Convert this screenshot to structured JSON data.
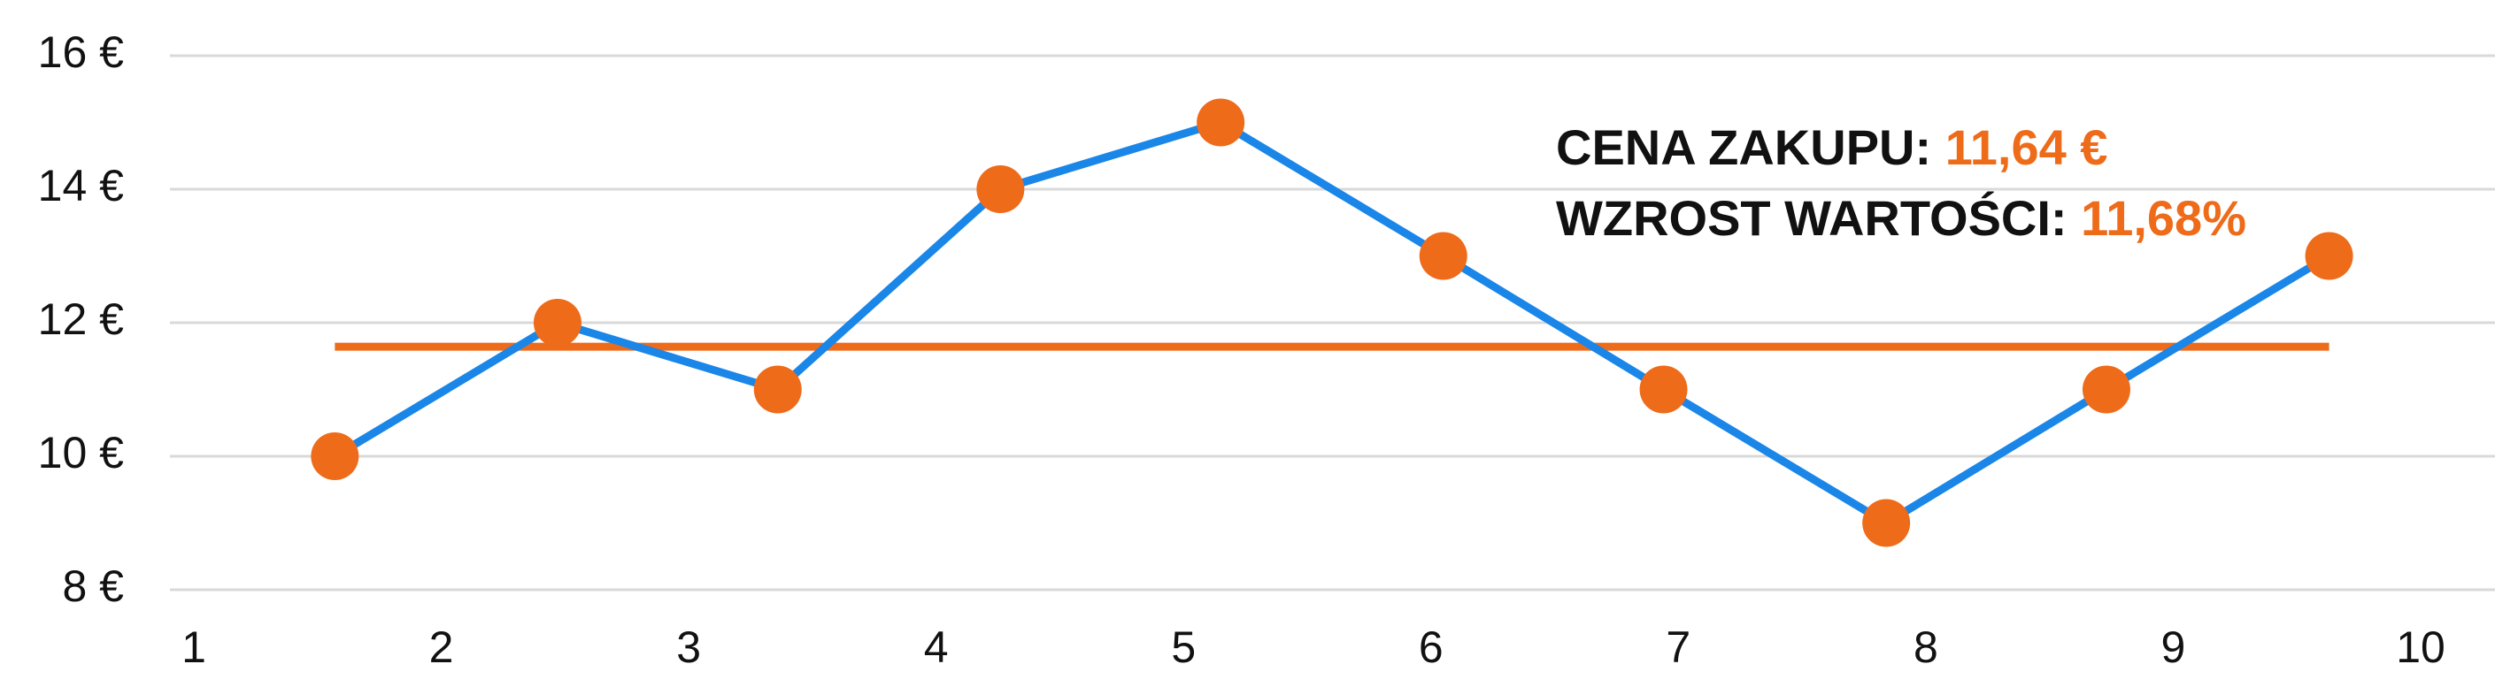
{
  "chart_data": {
    "type": "line",
    "x": [
      1.57,
      2.47,
      3.36,
      4.26,
      5.15,
      6.05,
      6.94,
      7.84,
      8.73,
      9.63
    ],
    "values": [
      10,
      12,
      11,
      14,
      15,
      13,
      11,
      9,
      11,
      13
    ],
    "line_color": "#1a86e8",
    "marker_color": "#ee6b1a",
    "xlim": [
      1,
      10
    ],
    "xticks": [
      1,
      2,
      3,
      4,
      5,
      6,
      7,
      8,
      9,
      10
    ],
    "ylim": [
      8,
      16
    ],
    "yticks": [
      {
        "value": 8,
        "label": "8 €"
      },
      {
        "value": 10,
        "label": "10 €"
      },
      {
        "value": 12,
        "label": "12 €"
      },
      {
        "value": 14,
        "label": "14 €"
      },
      {
        "value": 16,
        "label": "16 €"
      }
    ],
    "grid": true,
    "reference_line": {
      "value": 11.64,
      "color": "#ee6b1a"
    },
    "annotations": [
      {
        "label": "CENA ZAKUPU:",
        "value": "11,64 €"
      },
      {
        "label": "WZROST WARTOŚCI:",
        "value": "11,68%"
      }
    ]
  }
}
